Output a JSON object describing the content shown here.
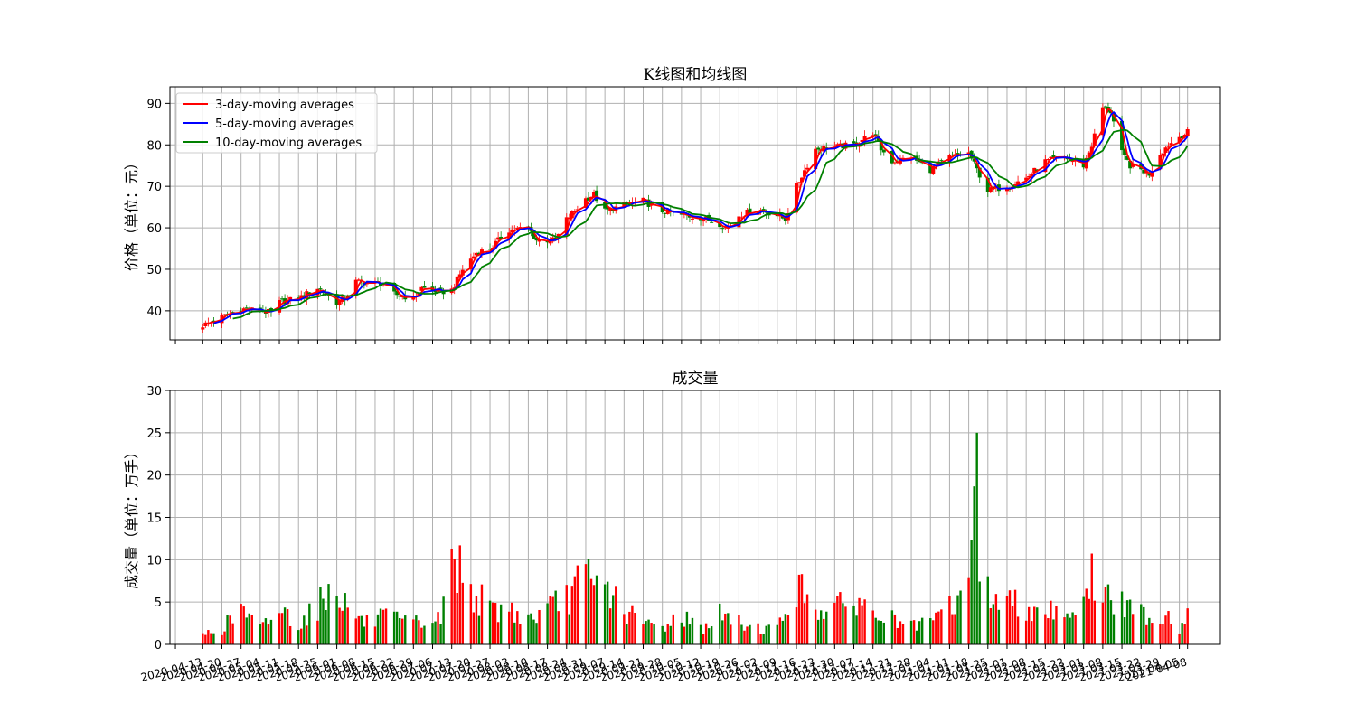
{
  "chart_data": [
    {
      "type": "candlestick",
      "title": "K线图和均线图",
      "ylabel": "价格（单位：元）",
      "ylim": [
        33,
        94
      ],
      "yticks": [
        40,
        50,
        60,
        70,
        80,
        90
      ],
      "grid": true,
      "legend_position": "top-left",
      "legend": [
        "3-day-moving averages",
        "5-day-moving averages",
        "10-day-moving averages"
      ],
      "colors": {
        "up": "#ff0000",
        "down": "#008000",
        "ma3": "#ff0000",
        "ma5": "#0000ff",
        "ma10": "#008000"
      },
      "start_date": "2020-04-13",
      "end_date": "2021-04-08",
      "close_path": [
        [
          "2020-04-13",
          36.5
        ],
        [
          "2020-04-20",
          38.5
        ],
        [
          "2020-04-27",
          40.5
        ],
        [
          "2020-05-04",
          40.0
        ],
        [
          "2020-05-08",
          39.5
        ],
        [
          "2020-05-11",
          42.0
        ],
        [
          "2020-05-18",
          43.0
        ],
        [
          "2020-05-25",
          45.5
        ],
        [
          "2020-06-01",
          42.0
        ],
        [
          "2020-06-04",
          43.0
        ],
        [
          "2020-06-08",
          47.0
        ],
        [
          "2020-06-18",
          46.5
        ],
        [
          "2020-06-22",
          44.0
        ],
        [
          "2020-06-29",
          43.0
        ],
        [
          "2020-07-02",
          45.5
        ],
        [
          "2020-07-09",
          44.5
        ],
        [
          "2020-07-13",
          45.0
        ],
        [
          "2020-07-17",
          50.0
        ],
        [
          "2020-07-22",
          54.0
        ],
        [
          "2020-07-27",
          55.0
        ],
        [
          "2020-08-03",
          59.5
        ],
        [
          "2020-08-10",
          60.0
        ],
        [
          "2020-08-13",
          57.0
        ],
        [
          "2020-08-20",
          57.0
        ],
        [
          "2020-08-24",
          62.0
        ],
        [
          "2020-08-31",
          67.0
        ],
        [
          "2020-09-03",
          68.0
        ],
        [
          "2020-09-07",
          64.0
        ],
        [
          "2020-09-14",
          65.5
        ],
        [
          "2020-09-21",
          66.5
        ],
        [
          "2020-09-28",
          64.0
        ],
        [
          "2020-10-05",
          63.0
        ],
        [
          "2020-10-12",
          62.5
        ],
        [
          "2020-10-19",
          61.0
        ],
        [
          "2020-10-22",
          60.0
        ],
        [
          "2020-10-26",
          63.0
        ],
        [
          "2020-11-02",
          64.5
        ],
        [
          "2020-11-09",
          63.0
        ],
        [
          "2020-11-12",
          62.0
        ],
        [
          "2020-11-16",
          70.0
        ],
        [
          "2020-11-23",
          79.0
        ],
        [
          "2020-11-30",
          79.5
        ],
        [
          "2020-12-07",
          80.0
        ],
        [
          "2020-12-14",
          83.0
        ],
        [
          "2020-12-17",
          79.0
        ],
        [
          "2020-12-21",
          76.0
        ],
        [
          "2020-12-28",
          77.0
        ],
        [
          "2021-01-04",
          74.0
        ],
        [
          "2021-01-11",
          77.0
        ],
        [
          "2021-01-18",
          78.0
        ],
        [
          "2021-01-21",
          74.0
        ],
        [
          "2021-01-25",
          69.0
        ],
        [
          "2021-02-01",
          70.0
        ],
        [
          "2021-02-08",
          72.0
        ],
        [
          "2021-02-15",
          76.0
        ],
        [
          "2021-02-22",
          77.0
        ],
        [
          "2021-03-01",
          75.0
        ],
        [
          "2021-03-04",
          80.0
        ],
        [
          "2021-03-08",
          89.0
        ],
        [
          "2021-03-11",
          88.0
        ],
        [
          "2021-03-15",
          78.0
        ],
        [
          "2021-03-18",
          75.0
        ],
        [
          "2021-03-22",
          74.0
        ],
        [
          "2021-03-25",
          73.0
        ],
        [
          "2021-03-29",
          78.0
        ],
        [
          "2021-04-01",
          80.0
        ],
        [
          "2021-04-05",
          82.0
        ],
        [
          "2021-04-08",
          83.0
        ]
      ]
    },
    {
      "type": "bar",
      "title": "成交量",
      "ylabel": "成交量（单位：万手）",
      "ylim": [
        0,
        30
      ],
      "yticks": [
        0,
        5,
        10,
        15,
        20,
        25,
        30
      ],
      "grid": true,
      "colors": {
        "up": "#ff0000",
        "down": "#008000"
      },
      "volume_path": [
        [
          "2020-04-13",
          1.2
        ],
        [
          "2020-04-20",
          1.8
        ],
        [
          "2020-04-27",
          4.2
        ],
        [
          "2020-05-04",
          1.8
        ],
        [
          "2020-05-11",
          4.2
        ],
        [
          "2020-05-18",
          2.5
        ],
        [
          "2020-05-25",
          4.6
        ],
        [
          "2020-06-01",
          7.3
        ],
        [
          "2020-06-04",
          4.8
        ],
        [
          "2020-06-11",
          2.5
        ],
        [
          "2020-06-18",
          3.2
        ],
        [
          "2020-06-25",
          2.6
        ],
        [
          "2020-07-02",
          2.5
        ],
        [
          "2020-07-09",
          3.0
        ],
        [
          "2020-07-13",
          9.8
        ],
        [
          "2020-07-16",
          9.0
        ],
        [
          "2020-07-20",
          6.5
        ],
        [
          "2020-07-27",
          4.0
        ],
        [
          "2020-08-03",
          4.2
        ],
        [
          "2020-08-10",
          3.0
        ],
        [
          "2020-08-17",
          4.0
        ],
        [
          "2020-08-24",
          5.6
        ],
        [
          "2020-08-31",
          8.0
        ],
        [
          "2020-09-03",
          6.5
        ],
        [
          "2020-09-07",
          7.2
        ],
        [
          "2020-09-14",
          4.0
        ],
        [
          "2020-09-21",
          2.5
        ],
        [
          "2020-09-28",
          2.0
        ],
        [
          "2020-10-05",
          3.5
        ],
        [
          "2020-10-12",
          1.8
        ],
        [
          "2020-10-19",
          3.5
        ],
        [
          "2020-10-26",
          2.5
        ],
        [
          "2020-11-02",
          2.0
        ],
        [
          "2020-11-09",
          1.8
        ],
        [
          "2020-11-16",
          6.8
        ],
        [
          "2020-11-23",
          4.5
        ],
        [
          "2020-11-30",
          4.0
        ],
        [
          "2020-12-07",
          5.5
        ],
        [
          "2020-12-14",
          3.5
        ],
        [
          "2020-12-21",
          3.0
        ],
        [
          "2020-12-28",
          2.0
        ],
        [
          "2021-01-04",
          2.5
        ],
        [
          "2021-01-11",
          4.5
        ],
        [
          "2021-01-18",
          6.0
        ],
        [
          "2021-01-21",
          25.0
        ],
        [
          "2021-01-22",
          10.0
        ],
        [
          "2021-01-25",
          6.0
        ],
        [
          "2021-02-01",
          5.0
        ],
        [
          "2021-02-08",
          4.5
        ],
        [
          "2021-02-15",
          4.2
        ],
        [
          "2021-02-22",
          4.0
        ],
        [
          "2021-03-01",
          4.5
        ],
        [
          "2021-03-04",
          8.0
        ],
        [
          "2021-03-08",
          6.0
        ],
        [
          "2021-03-15",
          4.5
        ],
        [
          "2021-03-22",
          3.8
        ],
        [
          "2021-03-29",
          3.0
        ],
        [
          "2021-04-01",
          3.5
        ],
        [
          "2021-04-05",
          2.0
        ],
        [
          "2021-04-08",
          3.2
        ]
      ],
      "xticks": [
        "2020-04-13",
        "2020-04-20",
        "2020-04-27",
        "2020-05-04",
        "2020-05-11",
        "2020-05-18",
        "2020-05-25",
        "2020-06-01",
        "2020-06-08",
        "2020-06-15",
        "2020-06-22",
        "2020-06-29",
        "2020-07-06",
        "2020-07-13",
        "2020-07-20",
        "2020-07-27",
        "2020-08-03",
        "2020-08-10",
        "2020-08-17",
        "2020-08-24",
        "2020-08-31",
        "2020-09-07",
        "2020-09-14",
        "2020-09-21",
        "2020-09-28",
        "2020-10-05",
        "2020-10-12",
        "2020-10-19",
        "2020-10-26",
        "2020-11-02",
        "2020-11-09",
        "2020-11-16",
        "2020-11-23",
        "2020-11-30",
        "2020-12-07",
        "2020-12-14",
        "2020-12-21",
        "2020-12-28",
        "2021-01-04",
        "2021-01-11",
        "2021-01-18",
        "2021-01-25",
        "2021-02-01",
        "2021-02-08",
        "2021-02-15",
        "2021-02-22",
        "2021-03-01",
        "2021-03-08",
        "2021-03-15",
        "2021-03-22",
        "2021-03-29",
        "2021-04-05",
        "2021-04-08"
      ]
    }
  ]
}
